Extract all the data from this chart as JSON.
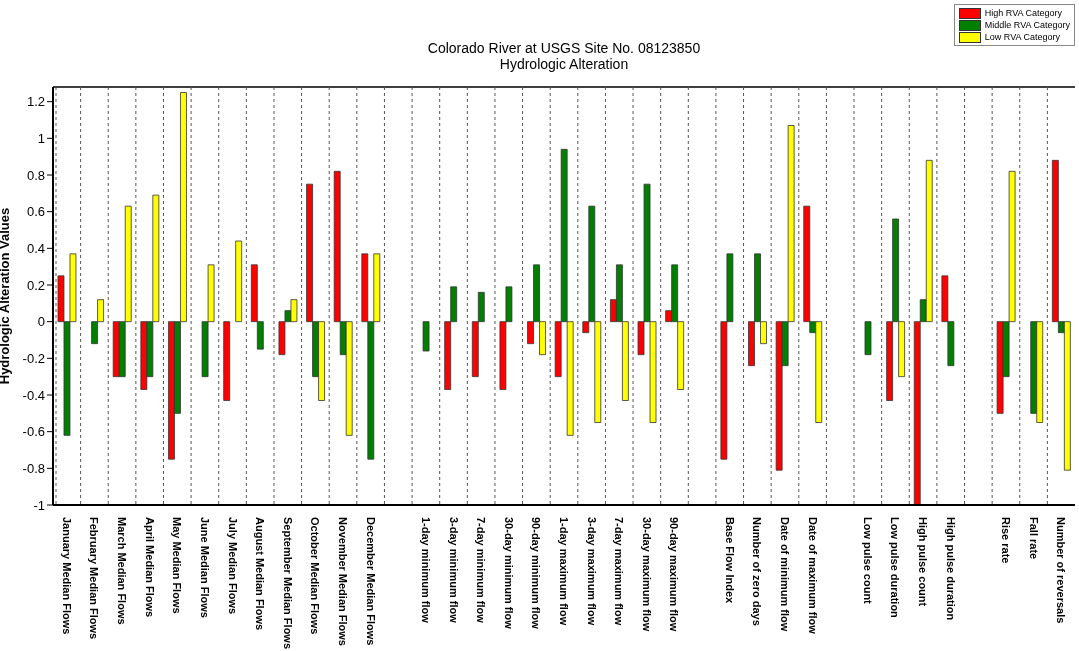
{
  "chart_data": {
    "type": "bar",
    "title": "Colorado River at USGS Site No. 08123850",
    "subtitle": "Hydrologic Alteration",
    "ylabel": "Hydrologic Alteration Values",
    "categories": [
      "January Median Flows",
      "February Median Flows",
      "March Median Flows",
      "April Median Flows",
      "May Median Flows",
      "June Median Flows",
      "July Median Flows",
      "August Median Flows",
      "September Median Flows",
      "October Median Flows",
      "November Median Flows",
      "December Median Flows",
      null,
      "1-day minimum flow",
      "3-day minimum flow",
      "7-day minimum flow",
      "30-day minimum flow",
      "90-day minimum flow",
      "1-day maximum flow",
      "3-day maximum flow",
      "7-day maximum flow",
      "30-day maximum flow",
      "90-day maximum flow",
      null,
      "Base Flow Index",
      "Number of zero days",
      "Date of minimum flow",
      "Date of maximum flow",
      null,
      "Low pulse count",
      "Low pulse duration",
      "High pulse count",
      "High pulse duration",
      null,
      "Rise rate",
      "Fall rate",
      "Number of reversals"
    ],
    "series": [
      {
        "name": "High RVA Category",
        "color": "#ff0000",
        "values": [
          0.25,
          0,
          -0.3,
          -0.37,
          -0.75,
          0,
          -0.43,
          0.31,
          -0.18,
          0.75,
          0.82,
          0.37,
          null,
          0,
          -0.37,
          -0.3,
          -0.37,
          -0.12,
          -0.3,
          -0.06,
          0.12,
          -0.18,
          0.06,
          null,
          -0.75,
          -0.24,
          -0.81,
          0.63,
          null,
          0,
          -0.43,
          -1,
          0.25,
          null,
          -0.5,
          0,
          0.88
        ]
      },
      {
        "name": "Middle RVA Category",
        "color": "#007f00",
        "values": [
          -0.62,
          -0.12,
          -0.3,
          -0.3,
          -0.5,
          -0.3,
          0,
          -0.15,
          0.06,
          -0.3,
          -0.18,
          -0.75,
          null,
          -0.16,
          0.19,
          0.16,
          0.19,
          0.31,
          0.94,
          0.63,
          0.31,
          0.75,
          0.31,
          null,
          0.37,
          0.37,
          -0.24,
          -0.06,
          null,
          -0.18,
          0.56,
          0.12,
          -0.24,
          null,
          -0.3,
          -0.5,
          -0.06
        ]
      },
      {
        "name": "Low RVA Category",
        "color": "#ffff00",
        "values": [
          0.37,
          0.12,
          0.63,
          0.69,
          1.25,
          0.31,
          0.44,
          0,
          0.12,
          -0.43,
          -0.62,
          0.37,
          null,
          0,
          0,
          0,
          0,
          -0.18,
          -0.62,
          -0.55,
          -0.43,
          -0.55,
          -0.37,
          null,
          0,
          -0.12,
          1.07,
          -0.55,
          null,
          0,
          -0.3,
          0.88,
          0,
          null,
          0.82,
          -0.55,
          -0.81
        ]
      }
    ],
    "ylim": [
      -1,
      1.28
    ],
    "yticks": [
      -1,
      -0.8,
      -0.6,
      -0.4,
      -0.2,
      0,
      0.2,
      0.4,
      0.6,
      0.8,
      1,
      1.2
    ],
    "grid": "x",
    "legend": "top right"
  }
}
